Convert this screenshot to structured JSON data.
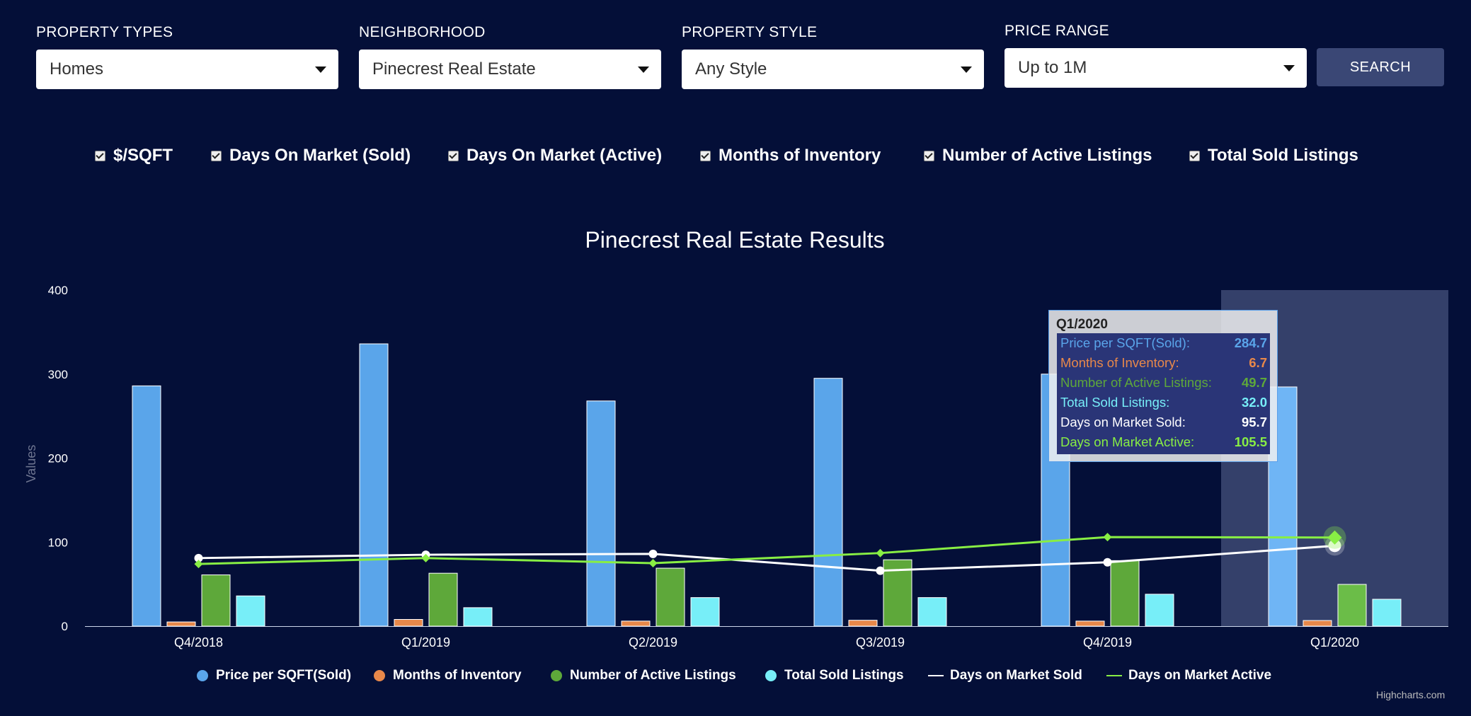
{
  "filters": [
    {
      "label": "PROPERTY TYPES",
      "value": "Homes"
    },
    {
      "label": "NEIGHBORHOOD",
      "value": "Pinecrest Real Estate"
    },
    {
      "label": "PROPERTY STYLE",
      "value": "Any Style"
    },
    {
      "label": "PRICE RANGE",
      "value": "Up to 1M"
    }
  ],
  "search_label": "SEARCH",
  "toggles": [
    "$/SQFT",
    "Days On Market (Sold)",
    "Days On Market (Active)",
    "Months of Inventory",
    "Number of Active Listings",
    "Total Sold Listings"
  ],
  "credit": "Highcharts.com",
  "chart_data": {
    "type": "bar",
    "title": "Pinecrest Real Estate Results",
    "ylabel": "Values",
    "xlabel": "",
    "ylim": [
      0,
      400
    ],
    "yticks": [
      "0",
      "100",
      "200",
      "300",
      "400"
    ],
    "categories": [
      "Q4/2018",
      "Q1/2019",
      "Q2/2019",
      "Q3/2019",
      "Q4/2019",
      "Q1/2020"
    ],
    "highlighted_category": "Q1/2020",
    "grid": false,
    "legend_position": "bottom",
    "series": [
      {
        "name": "Price per SQFT(Sold)",
        "type": "column",
        "color": "#5aa5ea",
        "values": [
          286,
          336,
          268,
          295,
          300,
          284.7
        ]
      },
      {
        "name": "Months of Inventory",
        "type": "column",
        "color": "#e8884a",
        "values": [
          5,
          8,
          6,
          7,
          6,
          6.7
        ]
      },
      {
        "name": "Number of Active Listings",
        "type": "column",
        "color": "#5ea83a",
        "values": [
          61,
          63,
          69,
          79,
          78,
          49.7
        ]
      },
      {
        "name": "Total Sold Listings",
        "type": "column",
        "color": "#77eef8",
        "values": [
          36,
          22,
          34,
          34,
          38,
          32.0
        ]
      },
      {
        "name": "Days on Market Sold",
        "type": "line",
        "color": "#ffffff",
        "values": [
          81,
          85,
          86,
          66,
          76,
          95.7
        ]
      },
      {
        "name": "Days on Market Active",
        "type": "line",
        "color": "#88ee44",
        "values": [
          74,
          81,
          75,
          87,
          106,
          105.5
        ]
      }
    ]
  },
  "tooltip": {
    "title": "Q1/2020",
    "rows": [
      {
        "label": "Price per SQFT(Sold):",
        "value": "284.7",
        "color": "#5aa5ea"
      },
      {
        "label": "Months of Inventory:",
        "value": "6.7",
        "color": "#e8884a"
      },
      {
        "label": "Number of Active Listings:",
        "value": "49.7",
        "color": "#5ea83a"
      },
      {
        "label": "Total Sold Listings:",
        "value": "32.0",
        "color": "#77eef8"
      },
      {
        "label": "Days on Market Sold:",
        "value": "95.7",
        "color": "#ffffff"
      },
      {
        "label": "Days on Market Active:",
        "value": "105.5",
        "color": "#88ee44"
      }
    ]
  }
}
